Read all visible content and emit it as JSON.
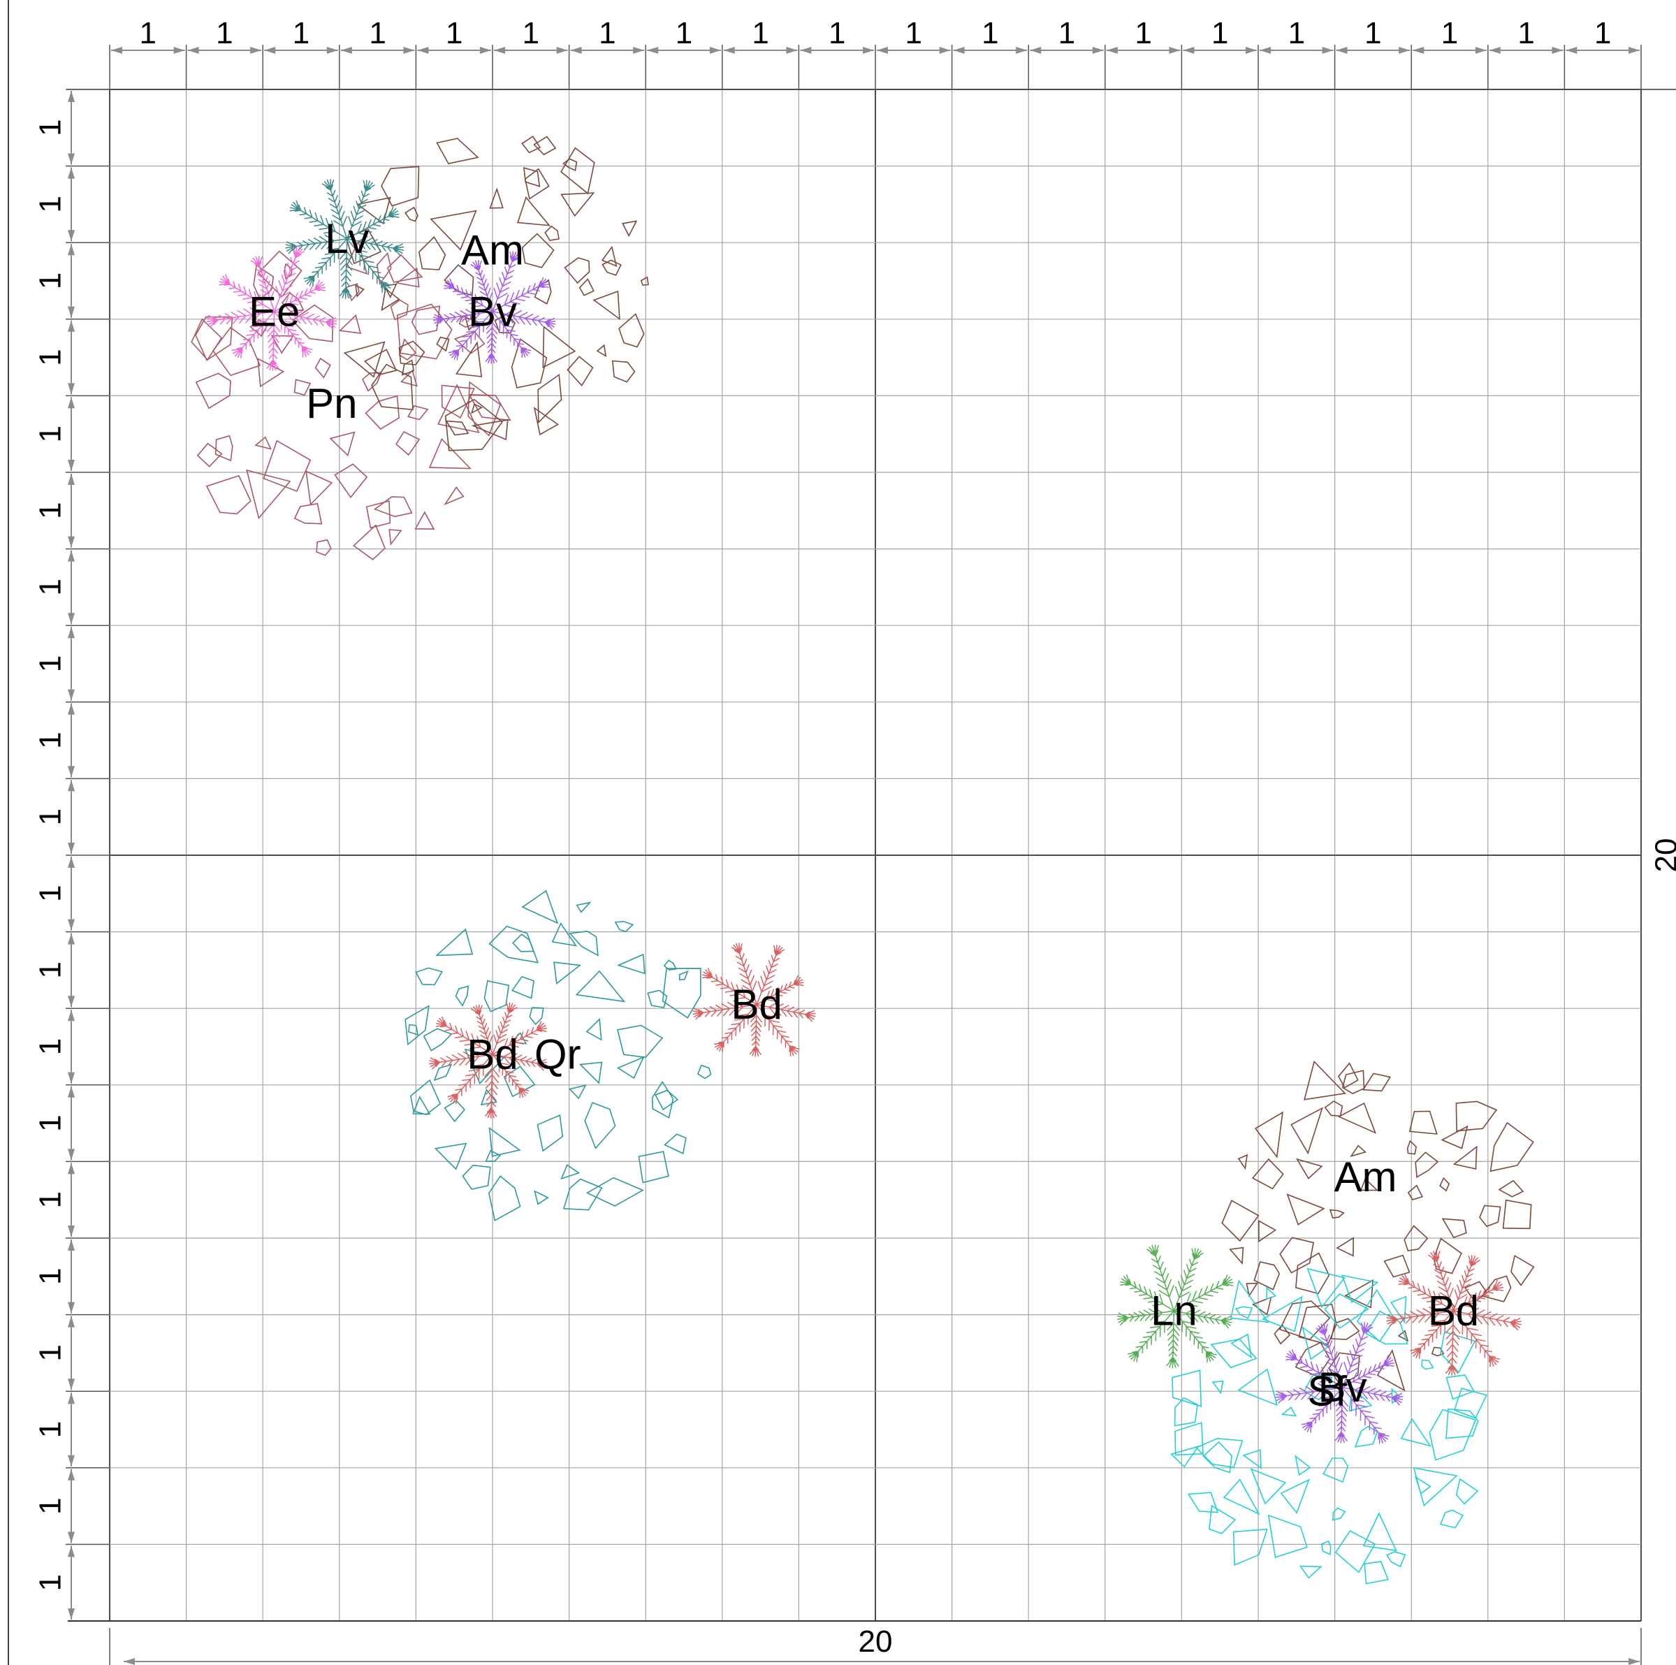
{
  "plan": {
    "width_m": 20,
    "height_m": 20,
    "cell_m": 1,
    "background": "#ffffff",
    "grid_minor_color": "#a6a6a6",
    "grid_major_color": "#4d4d4d",
    "dimension_color": "#8c8c8c",
    "top_tick_labels": [
      "1",
      "1",
      "1",
      "1",
      "1",
      "1",
      "1",
      "1",
      "1",
      "1",
      "1",
      "1",
      "1",
      "1",
      "1",
      "1",
      "1",
      "1",
      "1",
      "1"
    ],
    "left_tick_labels": [
      "1",
      "1",
      "1",
      "1",
      "1",
      "1",
      "1",
      "1",
      "1",
      "1",
      "1",
      "1",
      "1",
      "1",
      "1",
      "1",
      "1",
      "1",
      "1",
      "1"
    ],
    "bottom_total_label": "20",
    "right_total_label": "20"
  },
  "plants": [
    {
      "id": "Pn-1",
      "code": "Pn",
      "type": "tree",
      "x": 3.0,
      "y": 4.1,
      "r": 2.0,
      "color": "#a65a66",
      "label_dx": -0.1,
      "label_dy": 0.0
    },
    {
      "id": "Am-1",
      "code": "Am",
      "type": "tree",
      "x": 5.1,
      "y": 2.6,
      "r": 2.0,
      "color": "#7b4a3c",
      "label_dx": -0.1,
      "label_dy": -0.5
    },
    {
      "id": "Lv-1",
      "code": "Lv",
      "type": "shrub",
      "x": 3.1,
      "y": 1.95,
      "r": 0.75,
      "color": "#3d8a8a",
      "label_dx": 0.0,
      "label_dy": 0.0
    },
    {
      "id": "Ee-1",
      "code": "Ee",
      "type": "shrub",
      "x": 2.15,
      "y": 2.9,
      "r": 0.75,
      "color": "#f06ad8",
      "label_dx": 0.0,
      "label_dy": 0.0
    },
    {
      "id": "Bv-1",
      "code": "Bv",
      "type": "shrub",
      "x": 5.0,
      "y": 2.9,
      "r": 0.7,
      "color": "#a45de8",
      "label_dx": 0.0,
      "label_dy": 0.0
    },
    {
      "id": "Qr-1",
      "code": "Qr",
      "type": "tree",
      "x": 5.85,
      "y": 12.6,
      "r": 2.0,
      "color": "#2e9a9a",
      "label_dx": 0.0,
      "label_dy": 0.0
    },
    {
      "id": "Bd-1",
      "code": "Bd",
      "type": "shrub",
      "x": 5.0,
      "y": 12.6,
      "r": 0.7,
      "color": "#d86262",
      "label_dx": 0.0,
      "label_dy": 0.0
    },
    {
      "id": "Bd-2",
      "code": "Bd",
      "type": "shrub",
      "x": 8.45,
      "y": 11.95,
      "r": 0.7,
      "color": "#d86262",
      "label_dx": 0.0,
      "label_dy": 0.0
    },
    {
      "id": "Am-2",
      "code": "Am",
      "type": "tree",
      "x": 16.55,
      "y": 14.8,
      "r": 2.0,
      "color": "#7b4a3c",
      "label_dx": -0.15,
      "label_dy": -0.6
    },
    {
      "id": "Sf-1",
      "code": "Sf",
      "type": "tree",
      "x": 15.9,
      "y": 17.5,
      "r": 2.0,
      "color": "#26d0d0",
      "label_dx": 0.0,
      "label_dy": -0.5
    },
    {
      "id": "Ln-1",
      "code": "Ln",
      "type": "shrub",
      "x": 13.9,
      "y": 15.95,
      "r": 0.75,
      "color": "#55ad55",
      "label_dx": 0.0,
      "label_dy": 0.0
    },
    {
      "id": "Bd-3",
      "code": "Bd",
      "type": "shrub",
      "x": 17.55,
      "y": 15.95,
      "r": 0.75,
      "color": "#d86262",
      "label_dx": 0.0,
      "label_dy": 0.0
    },
    {
      "id": "Bv-2",
      "code": "Bv",
      "type": "shrub",
      "x": 16.1,
      "y": 16.95,
      "r": 0.75,
      "color": "#a45de8",
      "label_dx": 0.0,
      "label_dy": 0.0
    }
  ]
}
